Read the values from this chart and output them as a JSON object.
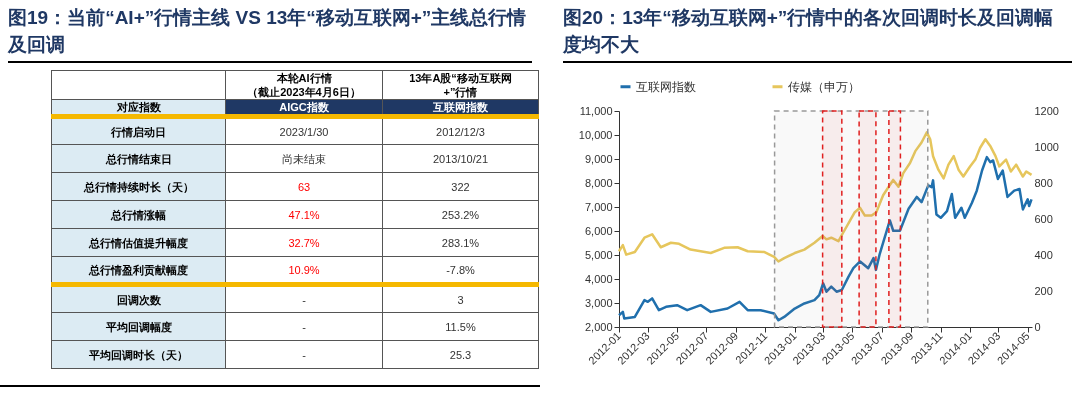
{
  "chart_data": [
    {
      "type": "other",
      "title": "图19：当前“AI+”行情主线 VS 13年“移动互联网+”主线总行情及回调",
      "categories": [
        "本轮AI行情（截止2023年4月6日）",
        "13年A股“移动互联网+”行情"
      ],
      "annotations": [
        "对应指数",
        "AIGC指数",
        "互联网指数",
        "行情启动日",
        "2023/1/30",
        "2012/12/3",
        "总行情结束日",
        "尚未结束",
        "2013/10/21",
        "总行情持续时长（天）",
        "63",
        "322",
        "总行情涨幅",
        "47.1%",
        "253.2%",
        "总行情估值提升幅度",
        "32.7%",
        "283.1%",
        "总行情盈利贡献幅度",
        "10.9%",
        "-7.8%",
        "回调次数",
        "-",
        "3",
        "平均回调幅度",
        "-",
        "11.5%",
        "平均回调时长（天）",
        "-",
        "25.3"
      ],
      "colors": [
        "#000000",
        "#ffffff",
        "#ffffff",
        "#000000",
        "#333333",
        "#333333",
        "#000000",
        "#333333",
        "#333333",
        "#000000",
        "#ff0000",
        "#333333",
        "#000000",
        "#ff0000",
        "#333333",
        "#000000",
        "#ff0000",
        "#333333",
        "#000000",
        "#ff0000",
        "#333333",
        "#000000",
        "#333333",
        "#333333",
        "#000000",
        "#333333",
        "#333333",
        "#000000",
        "#333333",
        "#333333"
      ]
    },
    {
      "type": "line",
      "title": "图20：13年“移动互联网+”行情中的各次回调时长及回调幅度均不大",
      "legend": "top",
      "xlim": [
        "2012-01-01",
        "2014-05-10"
      ],
      "xticks": [
        "2012-01",
        "2012-03",
        "2012-05",
        "2012-07",
        "2012-09",
        "2012-11",
        "2013-01",
        "2013-03",
        "2013-05",
        "2013-07",
        "2013-09",
        "2013-11",
        "2014-01",
        "2014-03",
        "2014-05"
      ],
      "ylim": [
        2000,
        11000
      ],
      "yticks": [
        {
          "value": 2000,
          "label": "2,000"
        },
        {
          "value": 3000,
          "label": "3,000"
        },
        {
          "value": 4000,
          "label": "4,000"
        },
        {
          "value": 5000,
          "label": "5,000"
        },
        {
          "value": 6000,
          "label": "6,000"
        },
        {
          "value": 7000,
          "label": "7,000"
        },
        {
          "value": 8000,
          "label": "8,000"
        },
        {
          "value": 9000,
          "label": "9,000"
        },
        {
          "value": 10000,
          "label": "10,000"
        },
        {
          "value": 11000,
          "label": "11,000"
        }
      ],
      "y2lim": [
        0,
        1200
      ],
      "y2ticks": [
        0,
        200,
        400,
        600,
        800,
        1000,
        1200
      ],
      "series": [
        {
          "name": "互联网指数",
          "color": "#1f6fad",
          "x": [
            "2012-01-01",
            "2012-01-09",
            "2012-01-12",
            "2012-02-03",
            "2012-02-23",
            "2012-03-01",
            "2012-03-10",
            "2012-03-24",
            "2012-04-08",
            "2012-05-01",
            "2012-05-22",
            "2012-06-19",
            "2012-07-10",
            "2012-08-14",
            "2012-09-08",
            "2012-09-25",
            "2012-10-22",
            "2012-11-19",
            "2012-11-28",
            "2012-12-10",
            "2013-01-01",
            "2013-01-21",
            "2013-02-11",
            "2013-02-21",
            "2013-03-01",
            "2013-03-08",
            "2013-03-18",
            "2013-03-29",
            "2013-04-09",
            "2013-04-23",
            "2013-05-03",
            "2013-05-17",
            "2013-06-03",
            "2013-06-14",
            "2013-06-19",
            "2013-06-27",
            "2013-07-18",
            "2013-07-25",
            "2013-08-08",
            "2013-08-26",
            "2013-09-12",
            "2013-09-22",
            "2013-10-06",
            "2013-10-13",
            "2013-10-16",
            "2013-10-23",
            "2013-11-01",
            "2013-11-14",
            "2013-11-24",
            "2013-12-01",
            "2013-12-14",
            "2013-12-21",
            "2014-01-05",
            "2014-01-15",
            "2014-01-26",
            "2014-02-05",
            "2014-02-12",
            "2014-02-18",
            "2014-02-28",
            "2014-03-10",
            "2014-03-20",
            "2014-04-03",
            "2014-04-14",
            "2014-04-21",
            "2014-05-01",
            "2014-05-04",
            "2014-05-09"
          ],
          "values": [
            2490,
            2630,
            2350,
            2420,
            3120,
            3050,
            3190,
            2700,
            2840,
            2910,
            2700,
            2910,
            2630,
            2770,
            3050,
            2700,
            2700,
            2560,
            2280,
            2420,
            2770,
            2980,
            3120,
            3330,
            3820,
            3470,
            3680,
            3470,
            3540,
            4100,
            4450,
            4730,
            4450,
            4870,
            4380,
            5050,
            6440,
            6010,
            6010,
            6930,
            7420,
            7200,
            7900,
            7830,
            8110,
            6690,
            6550,
            6830,
            7540,
            6550,
            6970,
            6550,
            7180,
            7680,
            8520,
            9080,
            8870,
            8940,
            8170,
            8520,
            7420,
            7680,
            7750,
            6900,
            7320,
            7040,
            7320
          ]
        },
        {
          "name": "传媒（申万）",
          "color": "#e6c65c",
          "axis": "y2",
          "x": [
            "2012-01-01",
            "2012-01-09",
            "2012-01-16",
            "2012-02-03",
            "2012-02-23",
            "2012-03-10",
            "2012-03-28",
            "2012-04-18",
            "2012-05-05",
            "2012-05-29",
            "2012-06-19",
            "2012-07-10",
            "2012-08-07",
            "2012-09-04",
            "2012-09-25",
            "2012-10-29",
            "2012-11-19",
            "2012-11-28",
            "2012-12-10",
            "2013-01-01",
            "2013-01-21",
            "2013-02-11",
            "2013-02-28",
            "2013-03-08",
            "2013-03-18",
            "2013-04-02",
            "2013-04-12",
            "2013-04-26",
            "2013-05-06",
            "2013-05-17",
            "2013-05-27",
            "2013-06-10",
            "2013-06-20",
            "2013-07-04",
            "2013-07-18",
            "2013-07-25",
            "2013-08-05",
            "2013-08-15",
            "2013-08-29",
            "2013-09-09",
            "2013-09-22",
            "2013-10-03",
            "2013-10-10",
            "2013-10-16",
            "2013-10-27",
            "2013-11-07",
            "2013-11-17",
            "2013-11-28",
            "2013-12-08",
            "2013-12-18",
            "2014-01-01",
            "2014-01-12",
            "2014-01-22",
            "2014-02-02",
            "2014-02-12",
            "2014-02-23",
            "2014-03-03",
            "2014-03-17",
            "2014-03-27",
            "2014-04-07",
            "2014-04-21",
            "2014-04-28",
            "2014-05-09"
          ],
          "values": [
            421,
            455,
            402,
            417,
            496,
            515,
            443,
            468,
            462,
            430,
            421,
            411,
            440,
            443,
            421,
            417,
            390,
            364,
            383,
            411,
            430,
            468,
            506,
            487,
            496,
            477,
            525,
            591,
            638,
            662,
            619,
            619,
            638,
            732,
            789,
            817,
            779,
            855,
            911,
            977,
            1025,
            1081,
            1043,
            949,
            874,
            826,
            902,
            949,
            874,
            836,
            892,
            930,
            996,
            1043,
            1006,
            949,
            892,
            930,
            864,
            902,
            836,
            864,
            845
          ]
        }
      ],
      "bands": [
        {
          "axis": "x",
          "from": "2012-11-20",
          "to": "2013-10-05",
          "color": "#999999"
        },
        {
          "axis": "x",
          "from": "2013-02-28",
          "to": "2013-04-09",
          "color": "#e02020"
        },
        {
          "axis": "x",
          "from": "2013-05-15",
          "to": "2013-06-19",
          "color": "#e02020"
        },
        {
          "axis": "x",
          "from": "2013-07-16",
          "to": "2013-08-09",
          "color": "#e02020"
        }
      ]
    }
  ]
}
